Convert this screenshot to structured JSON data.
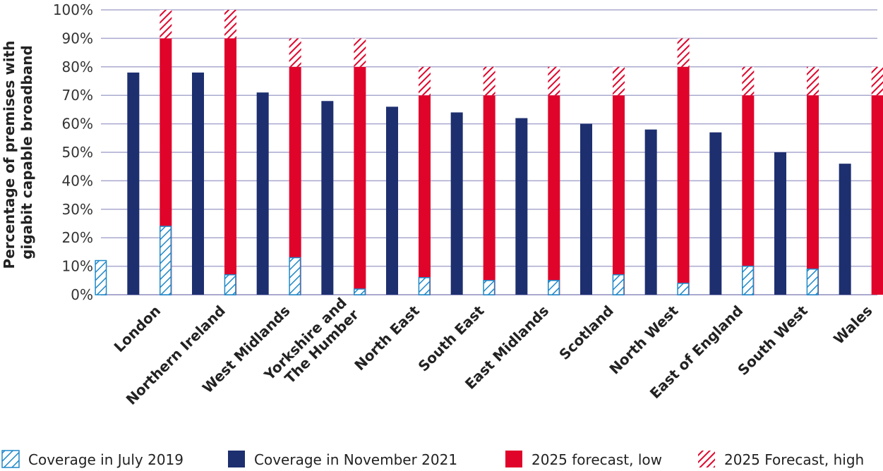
{
  "chart_data": {
    "type": "bar",
    "ylabel": [
      "Percentage of premises with",
      "gigabit capable broadband"
    ],
    "ylim": [
      0,
      100
    ],
    "yticks": [
      "0%",
      "10%",
      "20%",
      "30%",
      "40%",
      "50%",
      "60%",
      "70%",
      "80%",
      "90%",
      "100%"
    ],
    "grid": true,
    "legend_position": "bottom",
    "categories": [
      [
        "London"
      ],
      [
        "Northern Ireland"
      ],
      [
        "West Midlands"
      ],
      [
        "Yorkshire and",
        "The Humber"
      ],
      [
        "North East"
      ],
      [
        "South East"
      ],
      [
        "East Midlands"
      ],
      [
        "Scotland"
      ],
      [
        "North West"
      ],
      [
        "East of England"
      ],
      [
        "South West"
      ],
      [
        "Wales"
      ]
    ],
    "series": [
      {
        "name": "Coverage in July 2019",
        "values": [
          12,
          24,
          7,
          13,
          2,
          6,
          5,
          5,
          7,
          4,
          10,
          9
        ]
      },
      {
        "name": "Coverage in November 2021",
        "values": [
          78,
          78,
          71,
          68,
          66,
          64,
          62,
          60,
          58,
          57,
          50,
          46
        ]
      },
      {
        "name": "2025 forecast, low",
        "values": [
          90,
          90,
          80,
          80,
          70,
          70,
          70,
          70,
          80,
          70,
          70,
          70
        ]
      },
      {
        "name": "2025 Forecast, high",
        "values": [
          100,
          100,
          90,
          90,
          80,
          80,
          80,
          80,
          90,
          80,
          80,
          80
        ]
      }
    ],
    "colors": {
      "july2019": "#1e88c8",
      "nov2021": "#1d2f6f",
      "forecast_low": "#e0042b",
      "forecast_high": "#e0042b",
      "grid": "#a9a9cf"
    }
  }
}
